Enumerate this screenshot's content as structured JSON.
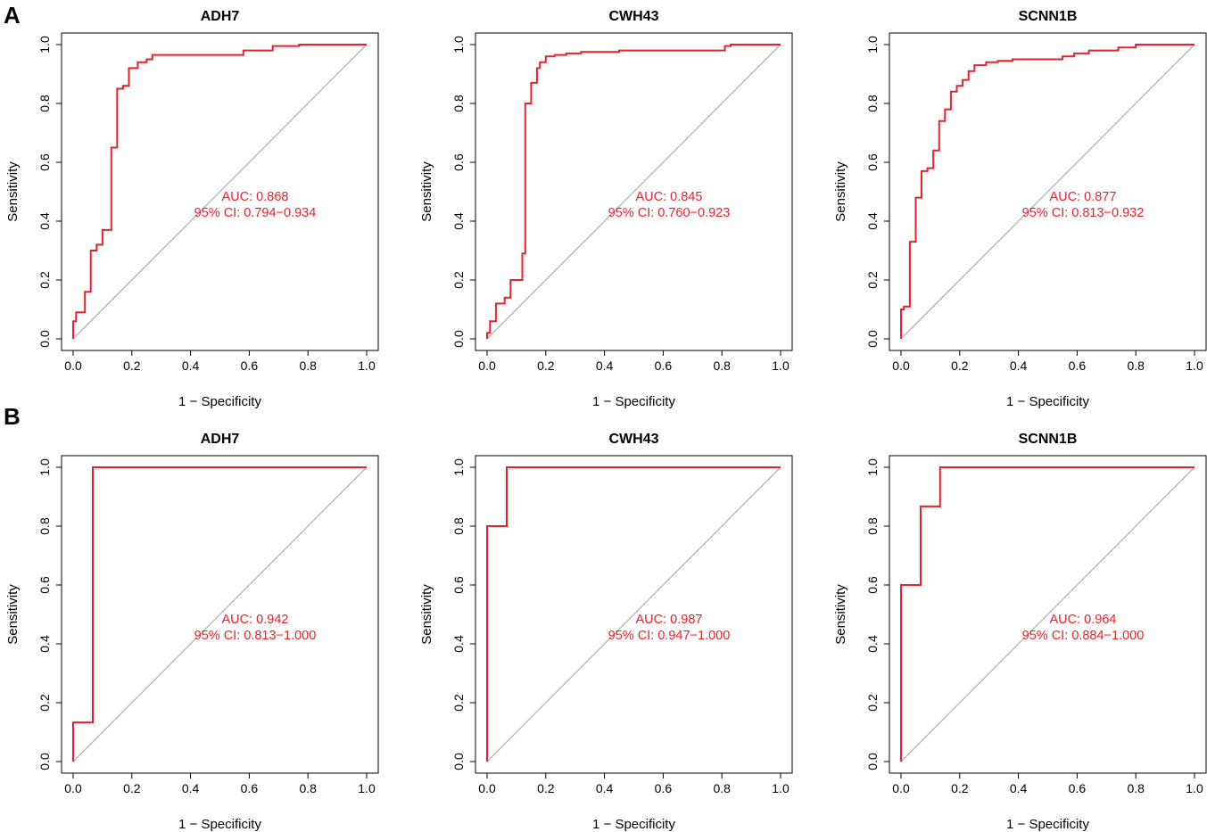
{
  "panel_labels": [
    "A",
    "B"
  ],
  "chart_data": [
    {
      "type": "line",
      "panel": "A",
      "title": "ADH7",
      "xlabel": "1 − Specificity",
      "ylabel": "Sensitivity",
      "xlim": [
        0,
        1
      ],
      "ylim": [
        0,
        1
      ],
      "xticks": [
        "0.0",
        "0.2",
        "0.4",
        "0.6",
        "0.8",
        "1.0"
      ],
      "yticks": [
        "0.0",
        "0.2",
        "0.4",
        "0.6",
        "0.8",
        "1.0"
      ],
      "auc_label": "AUC: 0.868",
      "ci_label": "95% CI: 0.794−0.934",
      "reference_line": "diagonal",
      "x": [
        0,
        0,
        0.01,
        0.01,
        0.04,
        0.04,
        0.06,
        0.06,
        0.08,
        0.08,
        0.1,
        0.1,
        0.13,
        0.13,
        0.15,
        0.15,
        0.17,
        0.17,
        0.19,
        0.19,
        0.22,
        0.22,
        0.25,
        0.25,
        0.27,
        0.27,
        0.58,
        0.58,
        0.68,
        0.68,
        0.77,
        0.77,
        1
      ],
      "y": [
        0,
        0.06,
        0.06,
        0.09,
        0.09,
        0.16,
        0.16,
        0.3,
        0.3,
        0.32,
        0.32,
        0.37,
        0.37,
        0.65,
        0.65,
        0.85,
        0.85,
        0.86,
        0.86,
        0.92,
        0.92,
        0.94,
        0.94,
        0.95,
        0.95,
        0.965,
        0.965,
        0.98,
        0.98,
        0.995,
        0.995,
        1,
        1
      ]
    },
    {
      "type": "line",
      "panel": "A",
      "title": "CWH43",
      "xlabel": "1 − Specificity",
      "ylabel": "Sensitivity",
      "xlim": [
        0,
        1
      ],
      "ylim": [
        0,
        1
      ],
      "xticks": [
        "0.0",
        "0.2",
        "0.4",
        "0.6",
        "0.8",
        "1.0"
      ],
      "yticks": [
        "0.0",
        "0.2",
        "0.4",
        "0.6",
        "0.8",
        "1.0"
      ],
      "auc_label": "AUC: 0.845",
      "ci_label": "95% CI: 0.760−0.923",
      "reference_line": "diagonal",
      "x": [
        0,
        0,
        0.01,
        0.01,
        0.03,
        0.03,
        0.06,
        0.06,
        0.08,
        0.08,
        0.12,
        0.12,
        0.13,
        0.13,
        0.15,
        0.15,
        0.17,
        0.17,
        0.18,
        0.18,
        0.2,
        0.2,
        0.23,
        0.23,
        0.27,
        0.27,
        0.32,
        0.32,
        0.45,
        0.45,
        0.81,
        0.81,
        0.83,
        0.83,
        1
      ],
      "y": [
        0,
        0.02,
        0.02,
        0.06,
        0.06,
        0.12,
        0.12,
        0.14,
        0.14,
        0.2,
        0.2,
        0.29,
        0.29,
        0.8,
        0.8,
        0.87,
        0.87,
        0.92,
        0.92,
        0.94,
        0.94,
        0.96,
        0.96,
        0.965,
        0.965,
        0.97,
        0.97,
        0.975,
        0.975,
        0.98,
        0.98,
        0.995,
        0.995,
        1,
        1
      ]
    },
    {
      "type": "line",
      "panel": "A",
      "title": "SCNN1B",
      "xlabel": "1 − Specificity",
      "ylabel": "Sensitivity",
      "xlim": [
        0,
        1
      ],
      "ylim": [
        0,
        1
      ],
      "xticks": [
        "0.0",
        "0.2",
        "0.4",
        "0.6",
        "0.8",
        "1.0"
      ],
      "yticks": [
        "0.0",
        "0.2",
        "0.4",
        "0.6",
        "0.8",
        "1.0"
      ],
      "auc_label": "AUC: 0.877",
      "ci_label": "95% CI: 0.813−0.932",
      "reference_line": "diagonal",
      "x": [
        0,
        0,
        0.01,
        0.01,
        0.03,
        0.03,
        0.05,
        0.05,
        0.07,
        0.07,
        0.09,
        0.09,
        0.11,
        0.11,
        0.13,
        0.13,
        0.15,
        0.15,
        0.17,
        0.17,
        0.19,
        0.19,
        0.21,
        0.21,
        0.23,
        0.23,
        0.25,
        0.25,
        0.29,
        0.29,
        0.33,
        0.33,
        0.38,
        0.38,
        0.55,
        0.55,
        0.59,
        0.59,
        0.64,
        0.64,
        0.74,
        0.74,
        0.8,
        0.8,
        1
      ],
      "y": [
        0,
        0.1,
        0.1,
        0.11,
        0.11,
        0.33,
        0.33,
        0.48,
        0.48,
        0.57,
        0.57,
        0.58,
        0.58,
        0.64,
        0.64,
        0.74,
        0.74,
        0.78,
        0.78,
        0.84,
        0.84,
        0.86,
        0.86,
        0.88,
        0.88,
        0.91,
        0.91,
        0.93,
        0.93,
        0.94,
        0.94,
        0.945,
        0.945,
        0.95,
        0.95,
        0.96,
        0.96,
        0.97,
        0.97,
        0.98,
        0.98,
        0.99,
        0.99,
        1,
        1
      ]
    },
    {
      "type": "line",
      "panel": "B",
      "title": "ADH7",
      "xlabel": "1 − Specificity",
      "ylabel": "Sensitivity",
      "xlim": [
        0,
        1
      ],
      "ylim": [
        0,
        1
      ],
      "xticks": [
        "0.0",
        "0.2",
        "0.4",
        "0.6",
        "0.8",
        "1.0"
      ],
      "yticks": [
        "0.0",
        "0.2",
        "0.4",
        "0.6",
        "0.8",
        "1.0"
      ],
      "auc_label": "AUC: 0.942",
      "ci_label": "95% CI: 0.813−1.000",
      "reference_line": "diagonal",
      "x": [
        0,
        0,
        0.067,
        0.067,
        1
      ],
      "y": [
        0,
        0.133,
        0.133,
        1,
        1
      ]
    },
    {
      "type": "line",
      "panel": "B",
      "title": "CWH43",
      "xlabel": "1 − Specificity",
      "ylabel": "Sensitivity",
      "xlim": [
        0,
        1
      ],
      "ylim": [
        0,
        1
      ],
      "xticks": [
        "0.0",
        "0.2",
        "0.4",
        "0.6",
        "0.8",
        "1.0"
      ],
      "yticks": [
        "0.0",
        "0.2",
        "0.4",
        "0.6",
        "0.8",
        "1.0"
      ],
      "auc_label": "AUC: 0.987",
      "ci_label": "95% CI: 0.947−1.000",
      "reference_line": "diagonal",
      "x": [
        0,
        0,
        0.067,
        0.067,
        1
      ],
      "y": [
        0,
        0.8,
        0.8,
        1,
        1
      ]
    },
    {
      "type": "line",
      "panel": "B",
      "title": "SCNN1B",
      "xlabel": "1 − Specificity",
      "ylabel": "Sensitivity",
      "xlim": [
        0,
        1
      ],
      "ylim": [
        0,
        1
      ],
      "xticks": [
        "0.0",
        "0.2",
        "0.4",
        "0.6",
        "0.8",
        "1.0"
      ],
      "yticks": [
        "0.0",
        "0.2",
        "0.4",
        "0.6",
        "0.8",
        "1.0"
      ],
      "auc_label": "AUC: 0.964",
      "ci_label": "95% CI: 0.884−1.000",
      "reference_line": "diagonal",
      "x": [
        0,
        0,
        0.067,
        0.067,
        0.133,
        0.133,
        1
      ],
      "y": [
        0,
        0.6,
        0.6,
        0.867,
        0.867,
        1,
        1
      ]
    }
  ],
  "colors": {
    "roc_line": "#e8222a",
    "reference_line": "#a0a0a0",
    "axes": "#000000"
  }
}
